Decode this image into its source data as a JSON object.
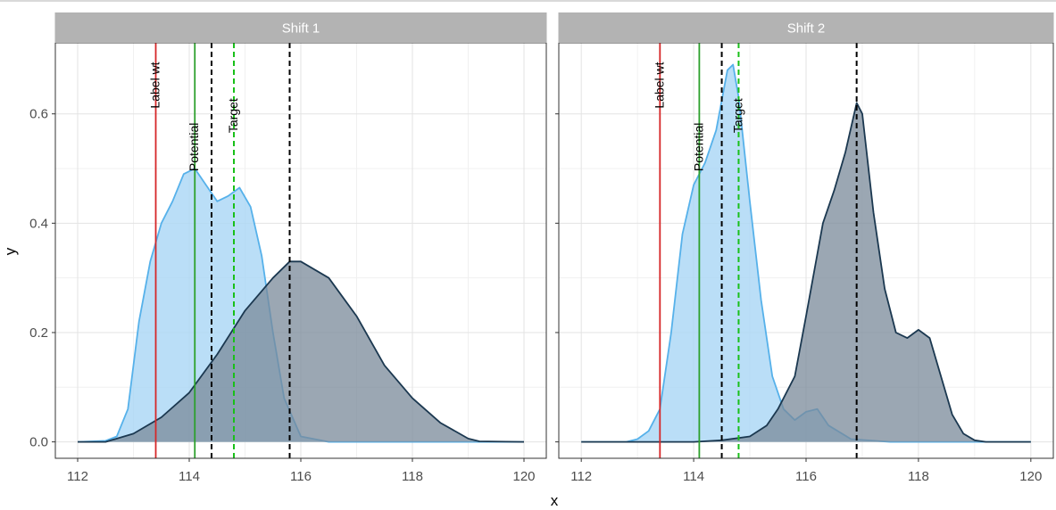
{
  "chart_data": {
    "type": "area",
    "xlabel": "x",
    "ylabel": "y",
    "xlim": [
      111.6,
      120.4
    ],
    "ylim": [
      -0.03,
      0.73
    ],
    "x_ticks": [
      112,
      114,
      116,
      118,
      120
    ],
    "y_ticks": [
      0.0,
      0.2,
      0.4,
      0.6
    ],
    "y_tick_labels": [
      "0.0",
      "0.2",
      "0.4",
      "0.6"
    ],
    "grid": true,
    "colors": {
      "series_light_fill": "#a9d6f5",
      "series_light_line": "#56b1ea",
      "series_dark_fill": "#7a8a99",
      "series_dark_line": "#1b3850",
      "strip_bg": "#b3b3b3",
      "strip_text": "#ffffff",
      "label_wt": "#d62728",
      "potential": "#2ca02c",
      "target": "#19c019",
      "dashed_black": "#000000"
    },
    "panels": [
      {
        "strip": "Shift 1",
        "series": [
          {
            "style": "light",
            "x": [
              112.0,
              112.5,
              112.7,
              112.9,
              113.1,
              113.3,
              113.5,
              113.7,
              113.9,
              114.1,
              114.3,
              114.5,
              114.7,
              114.9,
              115.1,
              115.3,
              115.5,
              115.7,
              116.0,
              116.5,
              117.0,
              120.0
            ],
            "y": [
              0.0,
              0.002,
              0.01,
              0.06,
              0.22,
              0.33,
              0.4,
              0.44,
              0.49,
              0.5,
              0.47,
              0.44,
              0.45,
              0.465,
              0.43,
              0.34,
              0.2,
              0.08,
              0.01,
              0.0,
              0.0,
              0.0
            ]
          },
          {
            "style": "dark",
            "x": [
              112.0,
              112.5,
              113.0,
              113.5,
              114.0,
              114.5,
              115.0,
              115.5,
              115.8,
              116.0,
              116.5,
              117.0,
              117.5,
              118.0,
              118.5,
              119.0,
              119.2,
              120.0
            ],
            "y": [
              0.0,
              0.0,
              0.015,
              0.045,
              0.09,
              0.16,
              0.24,
              0.3,
              0.33,
              0.33,
              0.3,
              0.23,
              0.14,
              0.08,
              0.035,
              0.006,
              0.001,
              0.0
            ]
          }
        ],
        "vlines": [
          {
            "x": 113.4,
            "style": "red-solid",
            "label": "Label wt"
          },
          {
            "x": 114.1,
            "style": "green-solid",
            "label": "Potential"
          },
          {
            "x": 114.4,
            "style": "black-dashed",
            "label": ""
          },
          {
            "x": 114.8,
            "style": "green-dashed",
            "label": "Target"
          },
          {
            "x": 115.8,
            "style": "black-dashed",
            "label": ""
          }
        ]
      },
      {
        "strip": "Shift 2",
        "series": [
          {
            "style": "light",
            "x": [
              112.0,
              112.8,
              113.0,
              113.2,
              113.4,
              113.6,
              113.8,
              114.0,
              114.2,
              114.4,
              114.6,
              114.7,
              114.8,
              115.0,
              115.2,
              115.4,
              115.6,
              115.8,
              116.0,
              116.2,
              116.4,
              116.8,
              117.5,
              120.0
            ],
            "y": [
              0.0,
              0.0,
              0.005,
              0.02,
              0.06,
              0.2,
              0.38,
              0.47,
              0.51,
              0.57,
              0.68,
              0.69,
              0.63,
              0.44,
              0.26,
              0.12,
              0.06,
              0.04,
              0.055,
              0.06,
              0.03,
              0.005,
              0.0,
              0.0
            ]
          },
          {
            "style": "dark",
            "x": [
              112.0,
              114.0,
              114.5,
              115.0,
              115.3,
              115.5,
              115.8,
              116.0,
              116.3,
              116.5,
              116.7,
              116.9,
              117.0,
              117.2,
              117.4,
              117.6,
              117.8,
              118.0,
              118.2,
              118.4,
              118.6,
              118.8,
              119.0,
              119.2,
              120.0
            ],
            "y": [
              0.0,
              0.0,
              0.003,
              0.01,
              0.03,
              0.06,
              0.12,
              0.23,
              0.4,
              0.46,
              0.53,
              0.62,
              0.6,
              0.42,
              0.28,
              0.2,
              0.19,
              0.205,
              0.19,
              0.12,
              0.05,
              0.015,
              0.003,
              0.0,
              0.0
            ]
          }
        ],
        "vlines": [
          {
            "x": 113.4,
            "style": "red-solid",
            "label": "Label wt"
          },
          {
            "x": 114.1,
            "style": "green-solid",
            "label": "Potential"
          },
          {
            "x": 114.5,
            "style": "black-dashed",
            "label": ""
          },
          {
            "x": 114.8,
            "style": "green-dashed",
            "label": "Target"
          },
          {
            "x": 116.9,
            "style": "black-dashed",
            "label": ""
          }
        ]
      }
    ]
  }
}
